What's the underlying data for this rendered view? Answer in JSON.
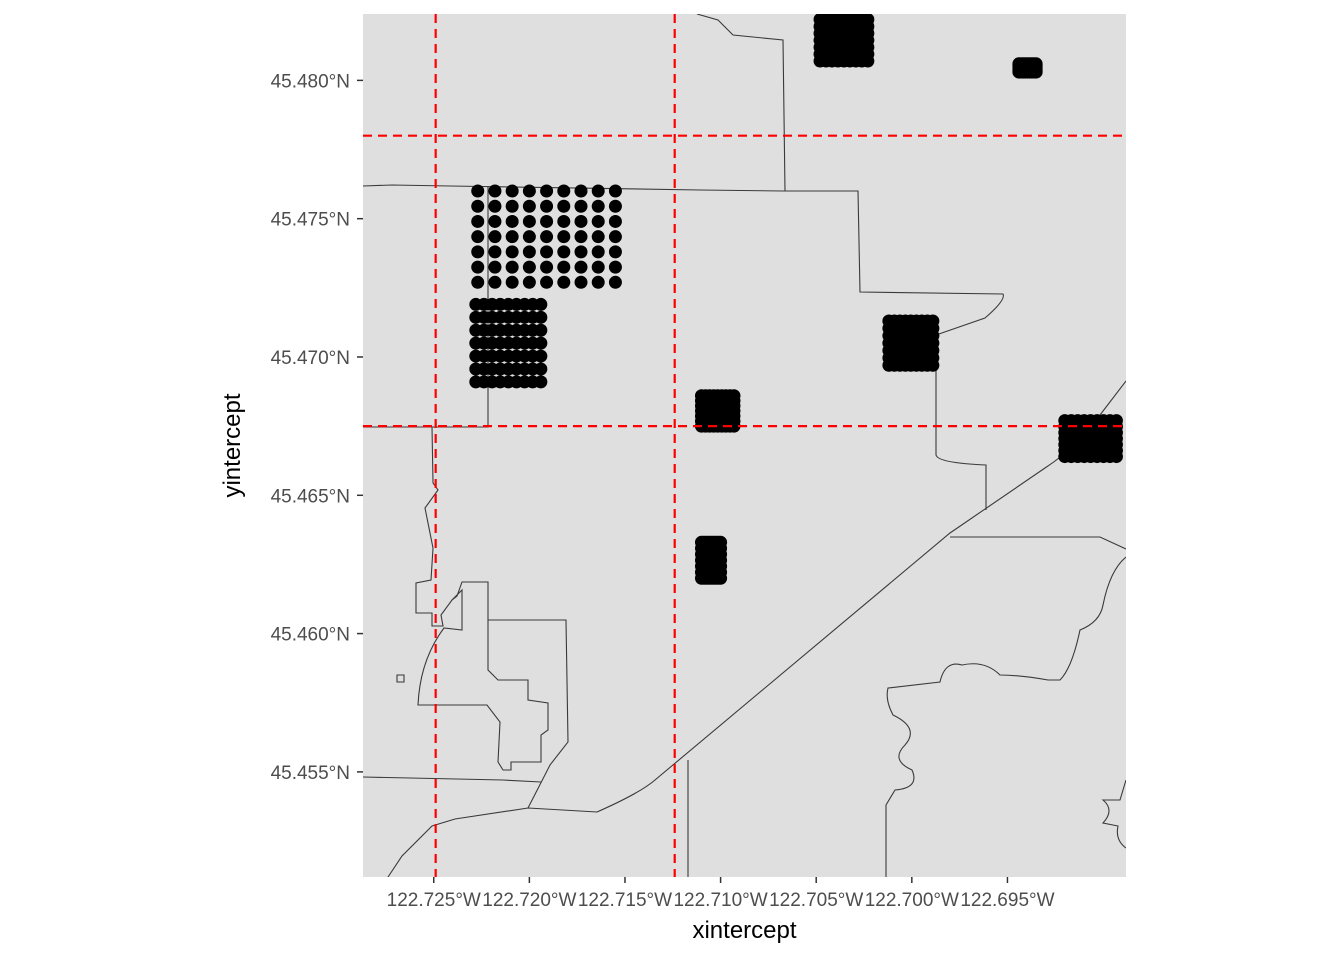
{
  "chart_data": {
    "type": "scatter",
    "title": "",
    "xlabel": "xintercept",
    "ylabel": "yintercept",
    "xlim": [
      -122.7287,
      -122.6888
    ],
    "ylim": [
      45.4512,
      45.4824
    ],
    "x_ticks": [
      {
        "value": -122.725,
        "label": "122.725°W"
      },
      {
        "value": -122.72,
        "label": "122.720°W"
      },
      {
        "value": -122.715,
        "label": "122.715°W"
      },
      {
        "value": -122.71,
        "label": "122.710°W"
      },
      {
        "value": -122.705,
        "label": "122.705°W"
      },
      {
        "value": -122.7,
        "label": "122.700°W"
      },
      {
        "value": -122.695,
        "label": "122.695°W"
      }
    ],
    "y_ticks": [
      {
        "value": 45.455,
        "label": "45.455°N"
      },
      {
        "value": 45.46,
        "label": "45.460°N"
      },
      {
        "value": 45.465,
        "label": "45.465°N"
      },
      {
        "value": 45.47,
        "label": "45.470°N"
      },
      {
        "value": 45.475,
        "label": "45.475°N"
      },
      {
        "value": 45.48,
        "label": "45.480°N"
      }
    ],
    "reference_lines": {
      "color": "#ff0000",
      "linetype": "dashed",
      "xintercept": [
        -122.7249,
        -122.7124
      ],
      "yintercept": [
        45.478,
        45.4675
      ]
    },
    "grid": false,
    "panel_background": "#dfdfdf",
    "point_color": "#000000",
    "boundary_color": "#3a3a3a",
    "point_clusters": [
      {
        "x_range": [
          -122.7227,
          -122.7155
        ],
        "y_range": [
          45.4727,
          45.476
        ]
      },
      {
        "x_range": [
          -122.7228,
          -122.7194
        ],
        "y_range": [
          45.4691,
          45.4719
        ]
      },
      {
        "x_range": [
          -122.711,
          -122.7093
        ],
        "y_range": [
          45.4675,
          45.4686
        ]
      },
      {
        "x_range": [
          -122.711,
          -122.71
        ],
        "y_range": [
          45.462,
          45.4633
        ]
      },
      {
        "x_range": [
          -122.7012,
          -122.6989
        ],
        "y_range": [
          45.4697,
          45.4713
        ]
      },
      {
        "x_range": [
          -122.7048,
          -122.7023
        ],
        "y_range": [
          45.4807,
          45.4822
        ]
      },
      {
        "x_range": [
          -122.6944,
          -122.6935
        ],
        "y_range": [
          45.4803,
          45.4806
        ]
      },
      {
        "x_range": [
          -122.692,
          -122.6893
        ],
        "y_range": [
          45.4664,
          45.4677
        ]
      }
    ]
  }
}
